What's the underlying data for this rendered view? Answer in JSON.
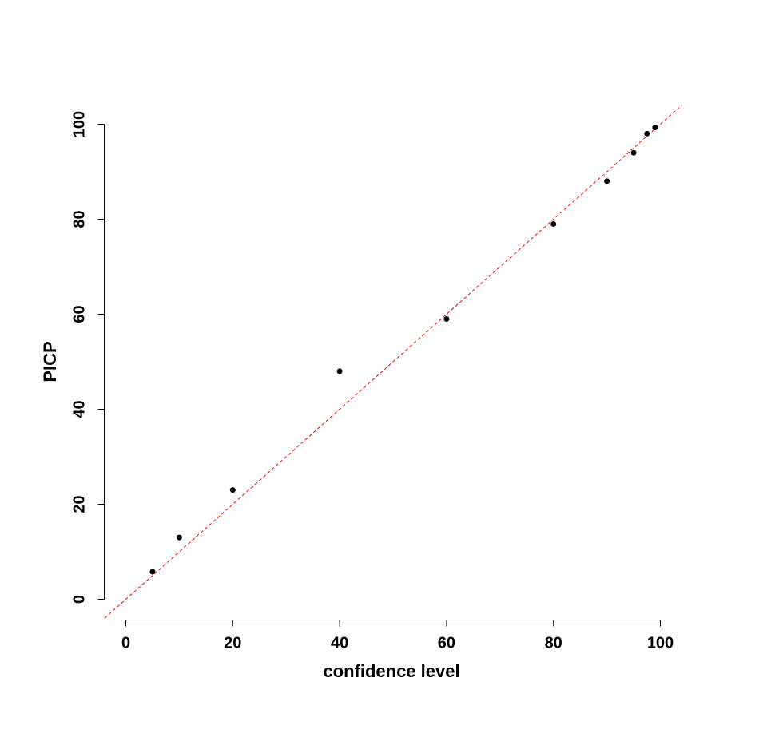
{
  "chart_data": {
    "type": "scatter",
    "title": "",
    "xlabel": "confidence level",
    "ylabel": "PICP",
    "xlim": [
      -4,
      104
    ],
    "ylim": [
      -4,
      104
    ],
    "x_ticks": [
      0,
      20,
      40,
      60,
      80,
      100
    ],
    "y_ticks": [
      0,
      20,
      40,
      60,
      80,
      100
    ],
    "x_tick_labels": [
      "0",
      "20",
      "40",
      "60",
      "80",
      "100"
    ],
    "y_tick_labels": [
      "0",
      "20",
      "40",
      "60",
      "80",
      "100"
    ],
    "grid": false,
    "legend": "none",
    "series": [
      {
        "x": [
          5,
          10,
          20,
          40,
          60,
          80,
          90,
          95,
          97.5,
          99
        ],
        "y": [
          5.8,
          13,
          23,
          48,
          59,
          79,
          88,
          94,
          98,
          99.3
        ],
        "color": "#000000",
        "marker": "filled-circle"
      }
    ],
    "reference_line": {
      "slope": 1,
      "intercept": 0,
      "style": "dashed",
      "color": "#ff0000"
    }
  }
}
